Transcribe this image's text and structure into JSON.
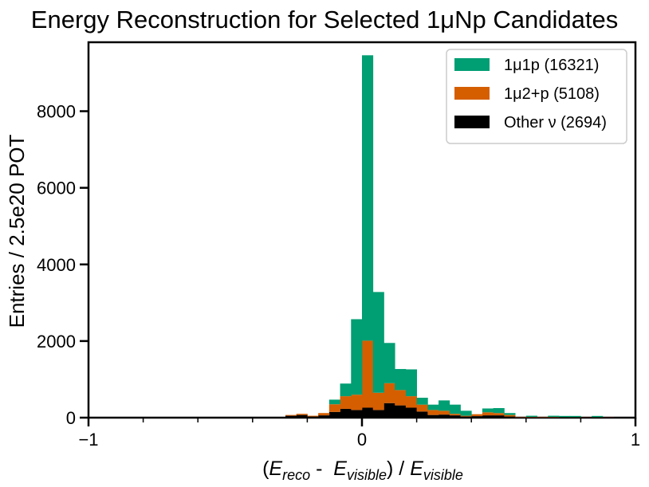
{
  "chart_data": {
    "type": "bar",
    "stacked": true,
    "histogram": true,
    "title": "Energy Reconstruction for Selected 1μNp Candidates",
    "xlabel": "(E_reco -  E_visible) / E_visible",
    "ylabel": "Entries / 2.5e20 POT",
    "xlim": [
      -1,
      1
    ],
    "ylim": [
      0,
      9800
    ],
    "xticks": [
      -1,
      0,
      1
    ],
    "xtick_labels": [
      "−1",
      "0",
      "1"
    ],
    "yticks": [
      0,
      2000,
      4000,
      6000,
      8000
    ],
    "ytick_labels": [
      "0",
      "2000",
      "4000",
      "6000",
      "8000"
    ],
    "grid": false,
    "legend_position": "top-right",
    "bin_width": 0.04,
    "bin_edges": [
      -0.28,
      -0.24,
      -0.2,
      -0.16,
      -0.12,
      -0.08,
      -0.04,
      0.0,
      0.04,
      0.08,
      0.12,
      0.16,
      0.2,
      0.24,
      0.28,
      0.32,
      0.36,
      0.4,
      0.44,
      0.48,
      0.52,
      0.56,
      0.6,
      0.64,
      0.68,
      0.72,
      0.76,
      0.8,
      0.84,
      0.88,
      0.92
    ],
    "series": [
      {
        "name": "Other ν (2694)",
        "color": "#000000",
        "values": [
          50,
          70,
          30,
          60,
          150,
          230,
          200,
          260,
          200,
          380,
          320,
          260,
          160,
          70,
          80,
          60,
          30,
          40,
          60,
          60,
          30,
          10,
          10,
          10,
          10,
          10,
          10,
          10,
          10,
          10
        ]
      },
      {
        "name": "1μ2+p (5108)",
        "color": "#d55e00",
        "values": [
          20,
          30,
          20,
          60,
          200,
          330,
          400,
          1750,
          450,
          520,
          400,
          300,
          180,
          130,
          100,
          40,
          20,
          50,
          80,
          60,
          40,
          10,
          10,
          10,
          10,
          5,
          5,
          5,
          5,
          5
        ]
      },
      {
        "name": "1μ1p (16321)",
        "color": "#009e73",
        "values": [
          0,
          0,
          0,
          0,
          120,
          330,
          1970,
          7450,
          2630,
          1050,
          550,
          700,
          180,
          140,
          270,
          240,
          130,
          0,
          100,
          130,
          50,
          0,
          30,
          0,
          30,
          30,
          30,
          0,
          30,
          0
        ]
      }
    ]
  }
}
